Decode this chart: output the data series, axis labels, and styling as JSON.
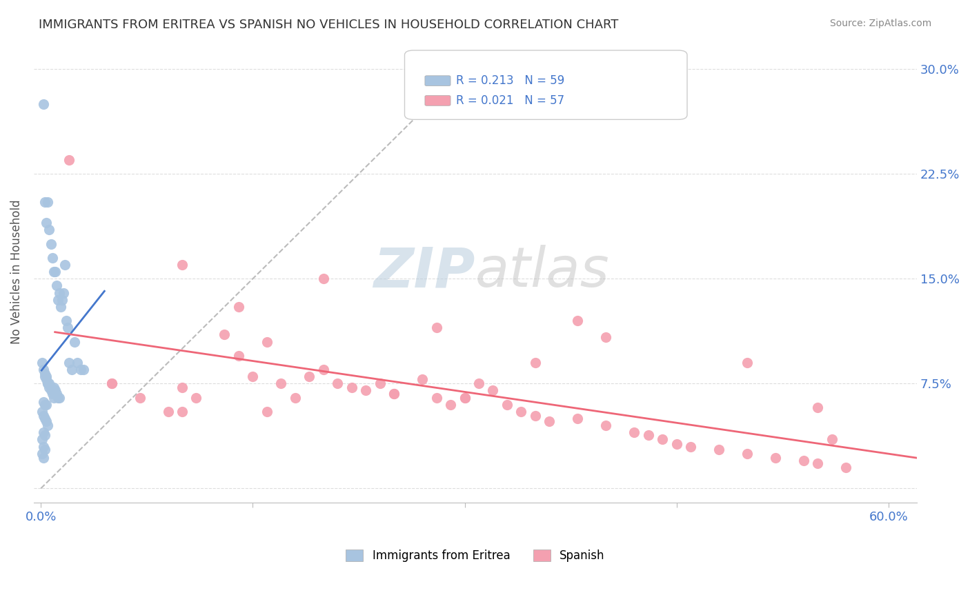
{
  "title": "IMMIGRANTS FROM ERITREA VS SPANISH NO VEHICLES IN HOUSEHOLD CORRELATION CHART",
  "source": "Source: ZipAtlas.com",
  "ylabel": "No Vehicles in Household",
  "legend1_r": "0.213",
  "legend1_n": "59",
  "legend2_r": "0.021",
  "legend2_n": "57",
  "legend_label1": "Immigrants from Eritrea",
  "legend_label2": "Spanish",
  "blue_color": "#a8c4e0",
  "pink_color": "#f4a0b0",
  "blue_line_color": "#4477cc",
  "pink_line_color": "#ee6677",
  "trendline_gray": "#bbbbbb",
  "blue_scatter_x": [
    0.002,
    0.003,
    0.004,
    0.005,
    0.006,
    0.007,
    0.008,
    0.009,
    0.01,
    0.011,
    0.012,
    0.013,
    0.014,
    0.015,
    0.016,
    0.017,
    0.018,
    0.019,
    0.02,
    0.022,
    0.024,
    0.026,
    0.028,
    0.03,
    0.001,
    0.002,
    0.003,
    0.004,
    0.005,
    0.006,
    0.007,
    0.008,
    0.009,
    0.01,
    0.011,
    0.012,
    0.013,
    0.003,
    0.004,
    0.005,
    0.006,
    0.007,
    0.008,
    0.009,
    0.002,
    0.003,
    0.004,
    0.001,
    0.002,
    0.003,
    0.004,
    0.005,
    0.002,
    0.003,
    0.001,
    0.002,
    0.003,
    0.001,
    0.002
  ],
  "blue_scatter_y": [
    0.275,
    0.205,
    0.19,
    0.205,
    0.185,
    0.175,
    0.165,
    0.155,
    0.155,
    0.145,
    0.135,
    0.14,
    0.13,
    0.135,
    0.14,
    0.16,
    0.12,
    0.115,
    0.09,
    0.085,
    0.105,
    0.09,
    0.085,
    0.085,
    0.09,
    0.085,
    0.082,
    0.08,
    0.075,
    0.075,
    0.072,
    0.07,
    0.072,
    0.07,
    0.068,
    0.065,
    0.065,
    0.08,
    0.078,
    0.075,
    0.072,
    0.07,
    0.068,
    0.065,
    0.062,
    0.06,
    0.06,
    0.055,
    0.052,
    0.05,
    0.048,
    0.045,
    0.04,
    0.038,
    0.035,
    0.03,
    0.028,
    0.025,
    0.022
  ],
  "pink_scatter_x": [
    0.02,
    0.05,
    0.07,
    0.09,
    0.1,
    0.11,
    0.13,
    0.14,
    0.15,
    0.16,
    0.17,
    0.18,
    0.19,
    0.2,
    0.21,
    0.22,
    0.23,
    0.24,
    0.25,
    0.27,
    0.28,
    0.29,
    0.3,
    0.31,
    0.32,
    0.33,
    0.34,
    0.35,
    0.36,
    0.38,
    0.4,
    0.42,
    0.43,
    0.44,
    0.45,
    0.46,
    0.48,
    0.5,
    0.52,
    0.54,
    0.55,
    0.56,
    0.57,
    0.1,
    0.14,
    0.2,
    0.28,
    0.35,
    0.5,
    0.55,
    0.38,
    0.4,
    0.16,
    0.25,
    0.3,
    0.05,
    0.1
  ],
  "pink_scatter_y": [
    0.235,
    0.075,
    0.065,
    0.055,
    0.072,
    0.065,
    0.11,
    0.095,
    0.08,
    0.105,
    0.075,
    0.065,
    0.08,
    0.085,
    0.075,
    0.072,
    0.07,
    0.075,
    0.068,
    0.078,
    0.065,
    0.06,
    0.065,
    0.075,
    0.07,
    0.06,
    0.055,
    0.052,
    0.048,
    0.05,
    0.045,
    0.04,
    0.038,
    0.035,
    0.032,
    0.03,
    0.028,
    0.025,
    0.022,
    0.02,
    0.018,
    0.035,
    0.015,
    0.16,
    0.13,
    0.15,
    0.115,
    0.09,
    0.09,
    0.058,
    0.12,
    0.108,
    0.055,
    0.068,
    0.065,
    0.075,
    0.055
  ]
}
